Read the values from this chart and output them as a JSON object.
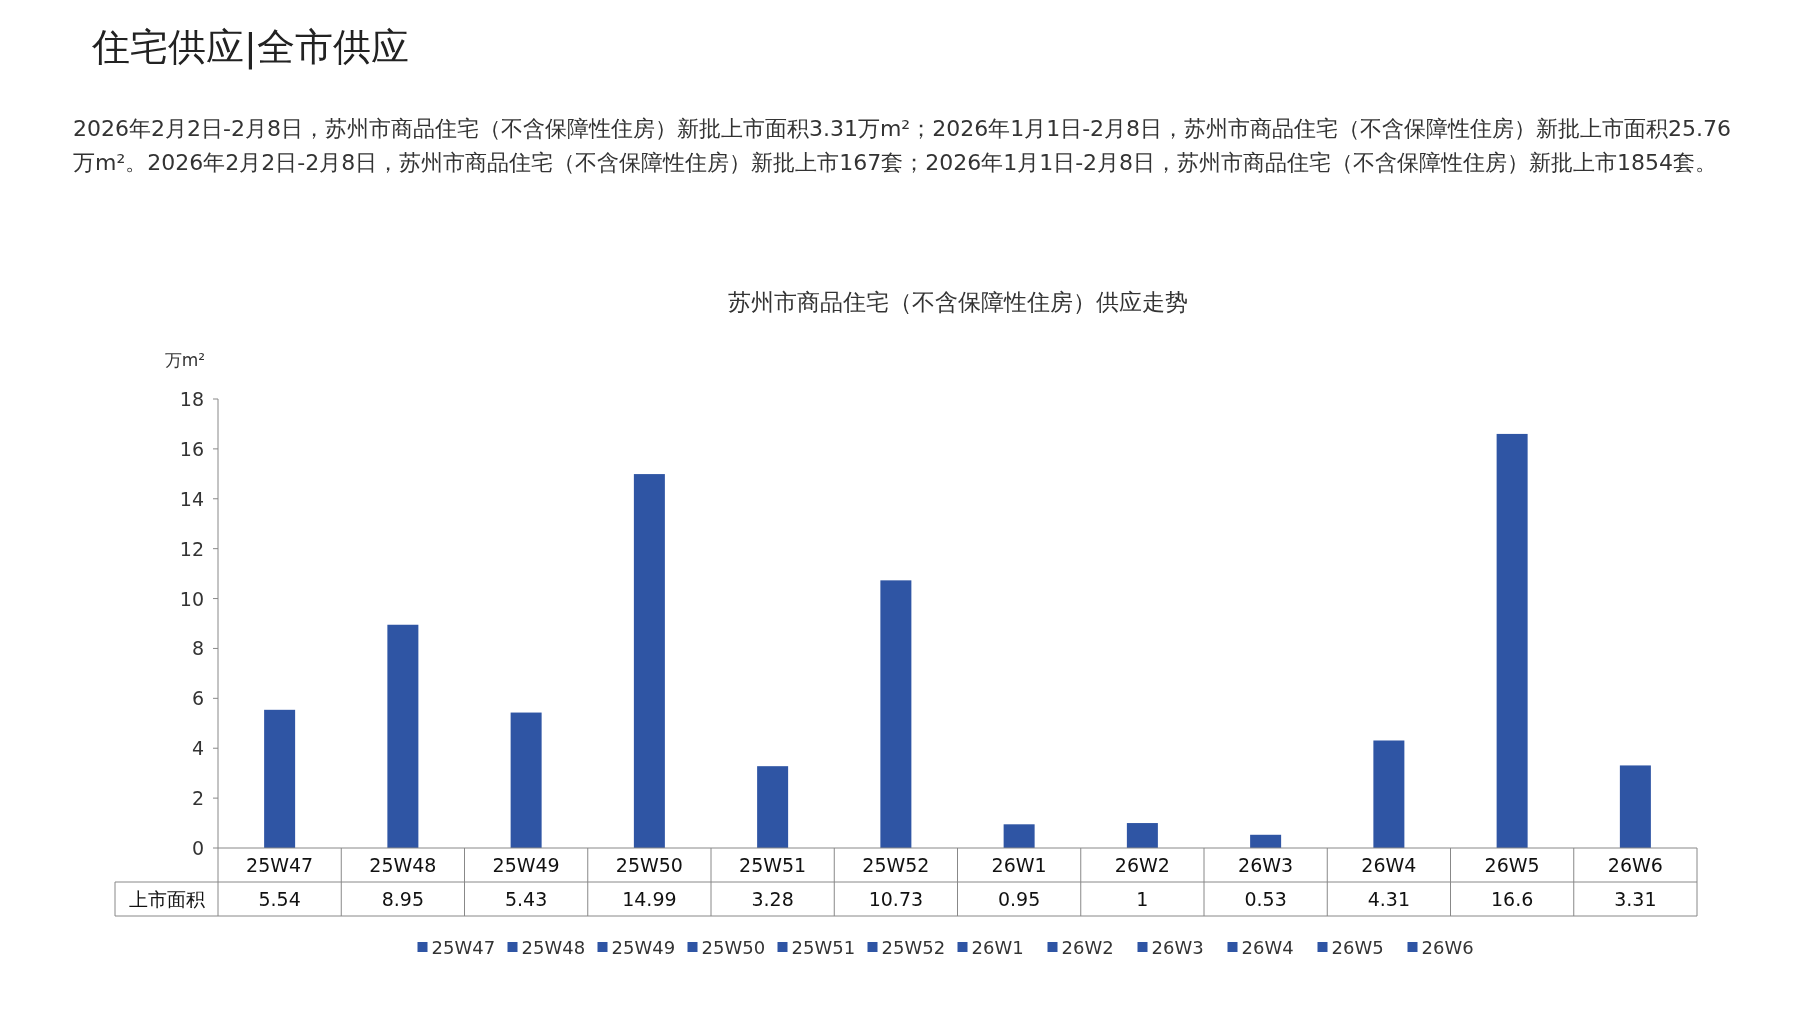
{
  "chart_data": {
    "type": "bar",
    "title": "苏州市商品住宅（不含保障性住房）供应走势",
    "annotations": [
      "住宅供应|全市供应",
      "2026年2月2日-2月8日，苏州市商品住宅（不含保障性住房）新批上市面积3.31万m²；2026年1月1日-2月8日，苏州市商品住宅（不含保障性住房）新批上市面积25.76万m²。2026年2月2日-2月8日，苏州市商品住宅（不含保障性住房）新批上市167套；2026年1月1日-2月8日，苏州市商品住宅（不含保障性住房）新批上市1854套。"
    ],
    "ylabel": "万m²",
    "categories": [
      "25W47",
      "25W48",
      "25W49",
      "25W50",
      "25W51",
      "25W52",
      "26W1",
      "26W2",
      "26W3",
      "26W4",
      "26W5",
      "26W6"
    ],
    "series": [
      {
        "name": "上市面积",
        "color": "#2f55a4",
        "values": [
          5.54,
          8.95,
          5.43,
          14.99,
          3.28,
          10.73,
          0.95,
          1,
          0.53,
          4.31,
          16.6,
          3.31
        ]
      }
    ],
    "ylim": [
      0,
      18
    ],
    "yticks": [
      0,
      2,
      4,
      6,
      8,
      10,
      12,
      14,
      16,
      18
    ],
    "data_labels": true,
    "legend": "bottom"
  }
}
